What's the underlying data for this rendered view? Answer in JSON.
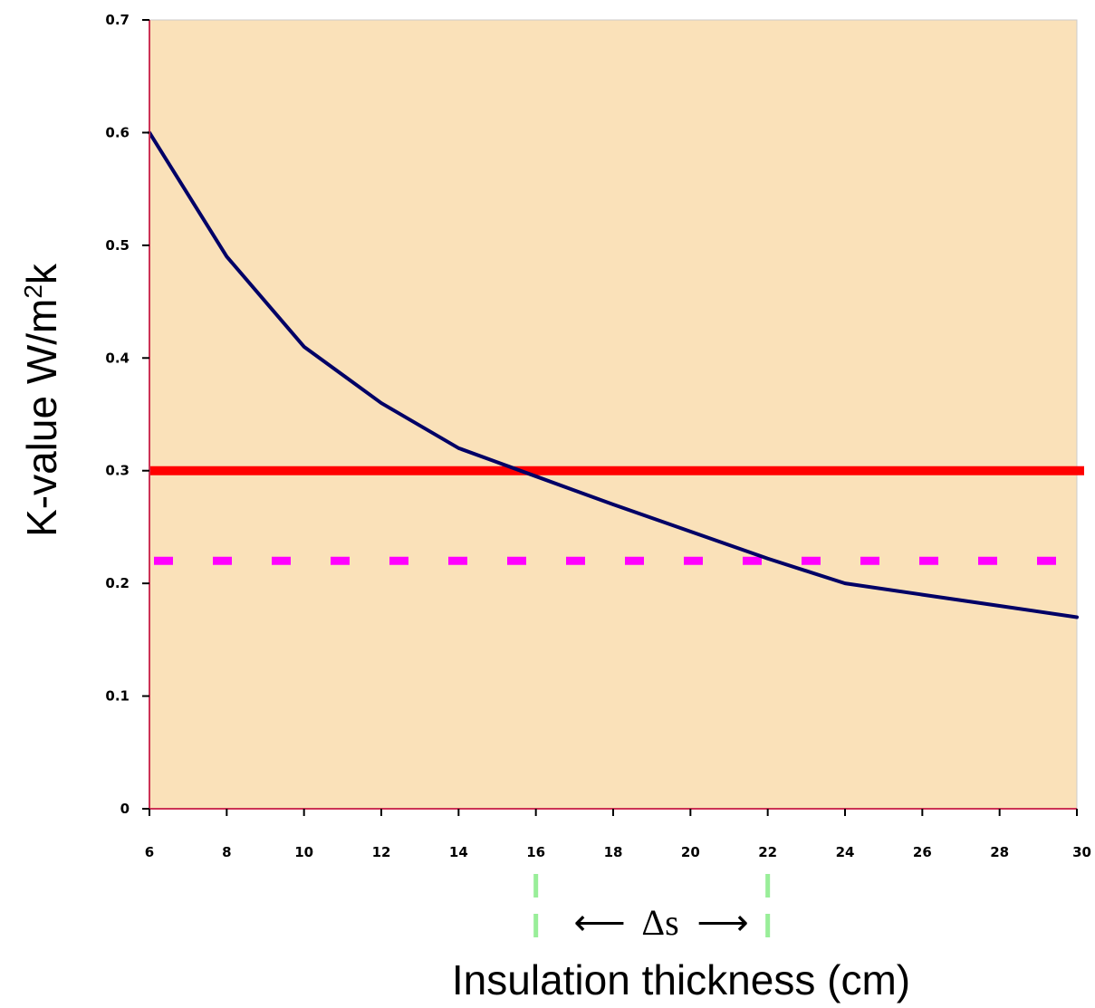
{
  "chart_data": {
    "type": "line",
    "title": "",
    "xlabel": "Insulation thickness (cm)",
    "ylabel": "K-value W/m²k",
    "ylabel_parts": {
      "before": "K-value W/m",
      "sup": "2",
      "after": "k"
    },
    "xlim": [
      6,
      30
    ],
    "ylim": [
      0,
      0.7
    ],
    "x_ticks": [
      "6",
      "8",
      "10",
      "12",
      "14",
      "16",
      "18",
      "20",
      "22",
      "24",
      "26",
      "28",
      "30"
    ],
    "y_ticks": [
      "0",
      "0.1",
      "0.2",
      "0.3",
      "0.4",
      "0.5",
      "0.6",
      "0.7"
    ],
    "grid": false,
    "series": [
      {
        "x": [
          6,
          8,
          10,
          12,
          14,
          16,
          18,
          20,
          22,
          24,
          26,
          28,
          30
        ],
        "y": [
          0.6,
          0.49,
          0.41,
          0.36,
          0.32,
          0.295,
          0.27,
          0.246,
          0.222,
          0.2,
          0.19,
          0.18,
          0.17
        ],
        "color": "#000066"
      }
    ],
    "reference_lines": [
      {
        "y": 0.3,
        "color": "#ff0000",
        "style": "solid"
      },
      {
        "y": 0.22,
        "color": "#ff00ff",
        "style": "dashed"
      }
    ],
    "annotations": {
      "markers_x": [
        16,
        22
      ],
      "marker_color": "#99ee99",
      "delta_text": "Δs",
      "left_arrow": "⟵",
      "right_arrow": "⟶"
    },
    "colors": {
      "plot_background": "#fae1b9",
      "axis_line": "#cc3355"
    }
  }
}
